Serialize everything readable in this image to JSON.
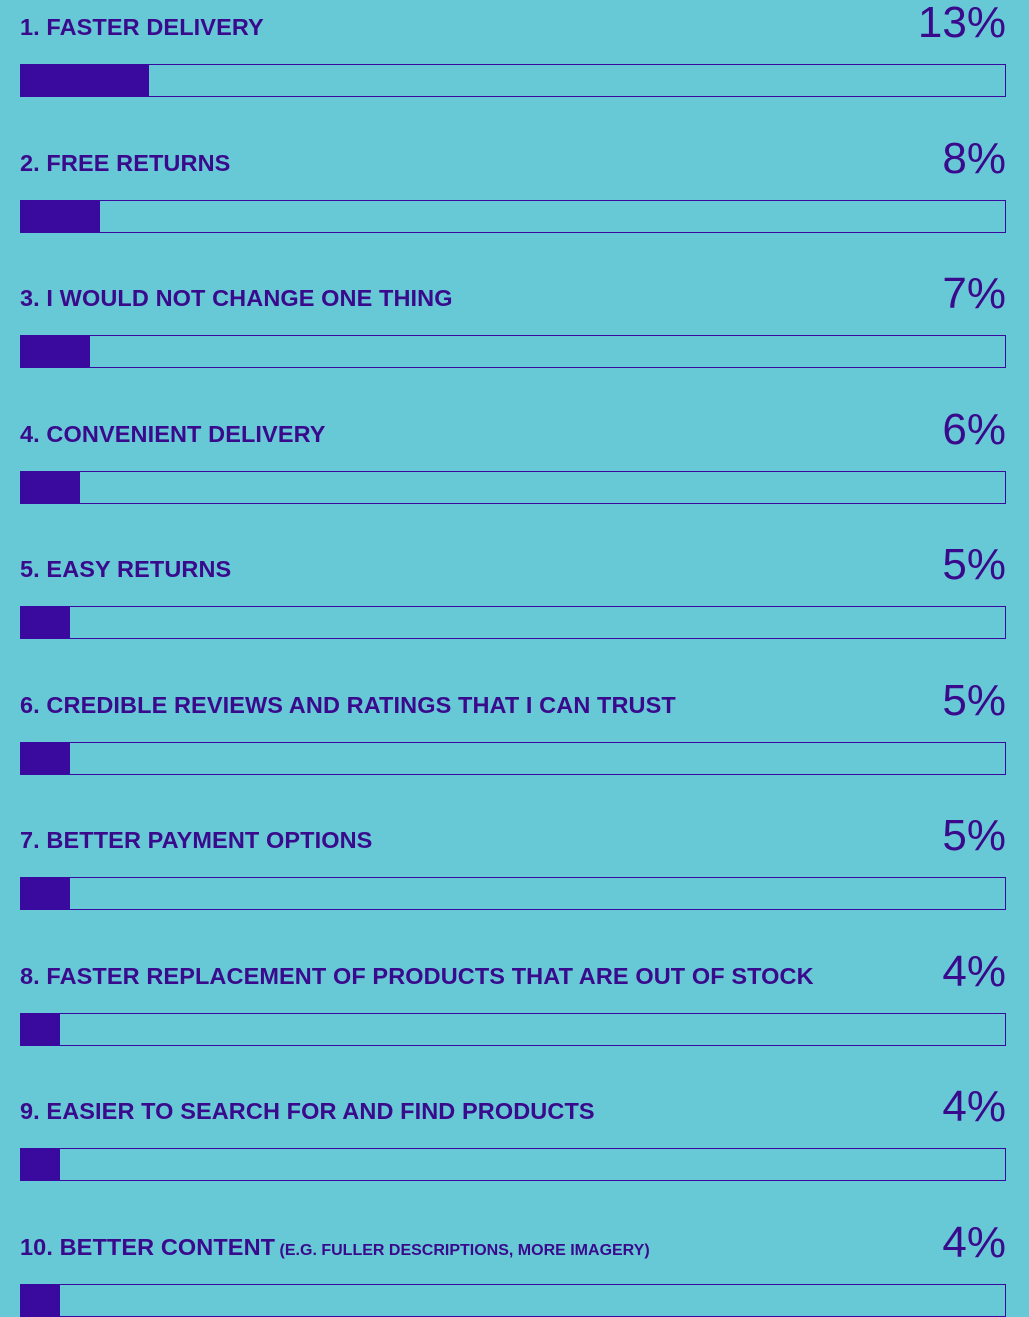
{
  "chart_data": {
    "type": "bar",
    "orientation": "horizontal",
    "xlim": [
      0,
      100
    ],
    "colors": {
      "background": "#67c8d6",
      "bar_fill": "#3a0a9e",
      "bar_track_border": "#3a0aa0",
      "text": "#3a0a8c"
    },
    "items": [
      {
        "label": "1. FASTER DELIVERY",
        "note": "",
        "value": 13,
        "value_label": "13%"
      },
      {
        "label": "2. FREE RETURNS",
        "note": "",
        "value": 8,
        "value_label": "8%"
      },
      {
        "label": "3. I WOULD NOT CHANGE ONE THING",
        "note": "",
        "value": 7,
        "value_label": "7%"
      },
      {
        "label": "4. CONVENIENT DELIVERY",
        "note": "",
        "value": 6,
        "value_label": "6%"
      },
      {
        "label": "5. EASY RETURNS",
        "note": "",
        "value": 5,
        "value_label": "5%"
      },
      {
        "label": "6. CREDIBLE REVIEWS AND RATINGS THAT I CAN TRUST",
        "note": "",
        "value": 5,
        "value_label": "5%"
      },
      {
        "label": "7. BETTER PAYMENT OPTIONS",
        "note": "",
        "value": 5,
        "value_label": "5%"
      },
      {
        "label": "8. FASTER REPLACEMENT OF PRODUCTS THAT ARE OUT OF STOCK",
        "note": "",
        "value": 4,
        "value_label": "4%"
      },
      {
        "label": "9. EASIER TO SEARCH FOR AND FIND PRODUCTS",
        "note": "",
        "value": 4,
        "value_label": "4%"
      },
      {
        "label": "10. BETTER CONTENT",
        "note": " (E.G. FULLER DESCRIPTIONS, MORE IMAGERY)",
        "value": 4,
        "value_label": "4%"
      }
    ]
  }
}
